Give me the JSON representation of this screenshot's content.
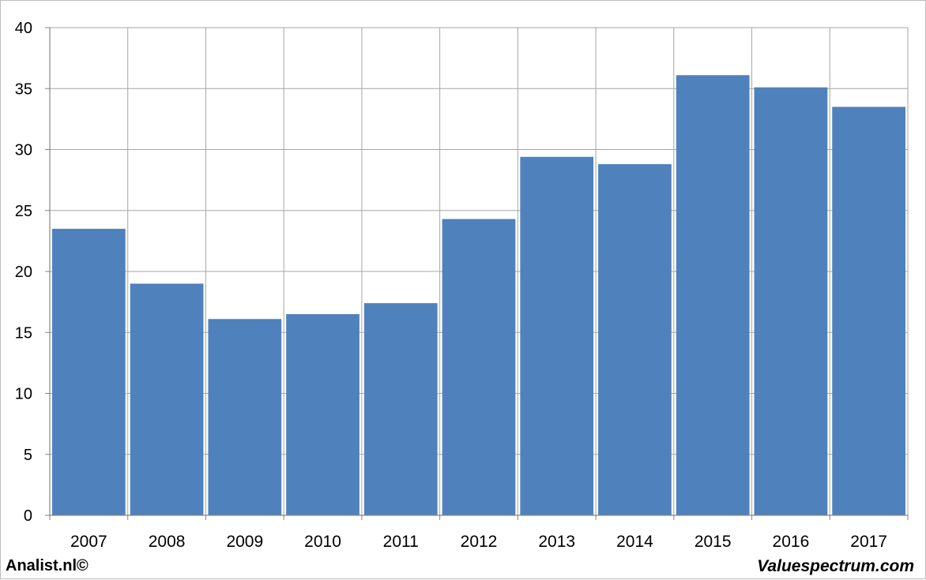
{
  "chart_data": {
    "type": "bar",
    "categories": [
      "2007",
      "2008",
      "2009",
      "2010",
      "2011",
      "2012",
      "2013",
      "2014",
      "2015",
      "2016",
      "2017"
    ],
    "values": [
      23.5,
      19.0,
      16.1,
      16.5,
      17.4,
      24.3,
      29.4,
      28.8,
      36.1,
      35.1,
      33.5
    ],
    "ylim": [
      0,
      40
    ],
    "yticks": [
      "0",
      "5",
      "10",
      "15",
      "20",
      "25",
      "30",
      "35",
      "40"
    ],
    "grid": true,
    "title": "",
    "xlabel": "",
    "ylabel": ""
  },
  "colors": {
    "bar": "#4f81bd",
    "grid": "#a6a6a6",
    "axis": "#868686"
  },
  "footer": {
    "left_text": "Analist.nl©",
    "right_text": "Valuespectrum.com"
  }
}
